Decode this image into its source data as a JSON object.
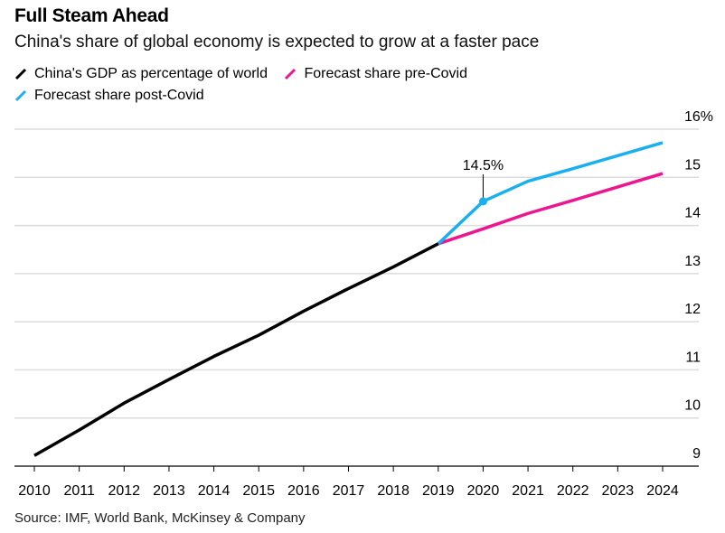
{
  "chart_data": {
    "type": "line",
    "title": "Full Steam Ahead",
    "subtitle": "China's share of global economy is expected to grow at a faster pace",
    "xlabel": "",
    "ylabel": "",
    "x": [
      2010,
      2011,
      2012,
      2013,
      2014,
      2015,
      2016,
      2017,
      2018,
      2019,
      2020,
      2021,
      2022,
      2023,
      2024
    ],
    "x_tick_labels": [
      "2010",
      "2011",
      "2012",
      "2013",
      "2014",
      "2015",
      "2016",
      "2017",
      "2018",
      "2019",
      "2020",
      "2021",
      "2022",
      "2023",
      "2024"
    ],
    "ylim": [
      9,
      16
    ],
    "y_ticks": [
      9,
      10,
      11,
      12,
      13,
      14,
      15,
      16
    ],
    "y_tick_labels": [
      "9",
      "10",
      "11",
      "12",
      "13",
      "14",
      "15",
      "16%"
    ],
    "y_axis_side": "right",
    "grid": true,
    "legend_placement": "top-left",
    "series": [
      {
        "name": "China's GDP as percentage of world",
        "color": "#000000",
        "points": [
          [
            2010,
            9.22
          ],
          [
            2011,
            9.75
          ],
          [
            2012,
            10.31
          ],
          [
            2013,
            10.8
          ],
          [
            2014,
            11.28
          ],
          [
            2015,
            11.72
          ],
          [
            2016,
            12.22
          ],
          [
            2017,
            12.69
          ],
          [
            2018,
            13.14
          ],
          [
            2019,
            13.62
          ]
        ]
      },
      {
        "name": "Forecast share pre-Covid",
        "color": "#ee1590",
        "points": [
          [
            2019,
            13.62
          ],
          [
            2020,
            13.93
          ],
          [
            2021,
            14.25
          ],
          [
            2022,
            14.52
          ],
          [
            2023,
            14.8
          ],
          [
            2024,
            15.08
          ]
        ]
      },
      {
        "name": "Forecast share post-Covid",
        "color": "#1ab0f0",
        "points": [
          [
            2019,
            13.62
          ],
          [
            2020,
            14.5
          ],
          [
            2021,
            14.92
          ],
          [
            2022,
            15.18
          ],
          [
            2023,
            15.45
          ],
          [
            2024,
            15.72
          ]
        ]
      }
    ],
    "annotations": [
      {
        "series": "Forecast share post-Covid",
        "x": 2020,
        "y": 14.5,
        "label": "14.5%"
      }
    ],
    "source": "Source: IMF, World Bank, McKinsey & Company"
  },
  "legend": {
    "items": [
      {
        "label": "China's GDP as percentage of world",
        "color": "#000000"
      },
      {
        "label": "Forecast share pre-Covid",
        "color": "#ee1590"
      },
      {
        "label": "Forecast share post-Covid",
        "color": "#1ab0f0"
      }
    ]
  }
}
